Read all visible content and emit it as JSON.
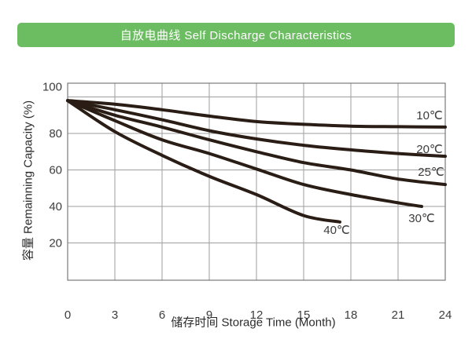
{
  "header": {
    "title": "自放电曲线 Self Discharge Characteristics"
  },
  "colors": {
    "header_bg": "#6cbd62",
    "header_text": "#ffffff",
    "curve": "#2a1d15",
    "grid": "#9e9e9e",
    "border": "#7a7a7a",
    "tick_text": "#3d3d3d",
    "axis_title_text": "#2b2b2b",
    "background": "#ffffff"
  },
  "chart_data": {
    "type": "line",
    "title": "自放电曲线 Self Discharge Characteristics",
    "xlabel": "储存时间 Storage Time (Month)",
    "ylabel": "容量 Remainning Capacity (%)",
    "x_ticks": [
      0,
      3,
      6,
      9,
      12,
      15,
      18,
      21,
      24
    ],
    "y_ticks": [
      100,
      80,
      60,
      40,
      20
    ],
    "xlim": [
      0,
      24
    ],
    "ylim": [
      0,
      108
    ],
    "grid": true,
    "legend_position": "labels-at-line-ends",
    "series": [
      {
        "name": "10℃",
        "points": [
          [
            0,
            98
          ],
          [
            3,
            96
          ],
          [
            6,
            93
          ],
          [
            9,
            89.5
          ],
          [
            12,
            86.5
          ],
          [
            15,
            85
          ],
          [
            18,
            84
          ],
          [
            21,
            83.7
          ],
          [
            24,
            83.5
          ]
        ],
        "label_at": [
          23,
          90
        ]
      },
      {
        "name": "20℃",
        "points": [
          [
            0,
            98
          ],
          [
            3,
            93
          ],
          [
            6,
            87.5
          ],
          [
            9,
            81.5
          ],
          [
            12,
            77
          ],
          [
            15,
            73.5
          ],
          [
            18,
            71
          ],
          [
            21,
            69
          ],
          [
            24,
            67.5
          ]
        ],
        "label_at": [
          23,
          71.5
        ]
      },
      {
        "name": "25℃",
        "points": [
          [
            0,
            98
          ],
          [
            3,
            90
          ],
          [
            6,
            83.5
          ],
          [
            9,
            76.5
          ],
          [
            12,
            70
          ],
          [
            15,
            64
          ],
          [
            18,
            60
          ],
          [
            21,
            55
          ],
          [
            24,
            52
          ]
        ],
        "label_at": [
          23.1,
          59
        ]
      },
      {
        "name": "30℃",
        "points": [
          [
            0,
            98
          ],
          [
            3,
            87
          ],
          [
            6,
            76.5
          ],
          [
            9,
            69
          ],
          [
            12,
            60.5
          ],
          [
            15,
            52
          ],
          [
            18,
            46.5
          ],
          [
            21,
            42
          ],
          [
            22.5,
            40
          ]
        ],
        "label_at": [
          22.5,
          33.5
        ]
      },
      {
        "name": "40℃",
        "points": [
          [
            0,
            98
          ],
          [
            3,
            81
          ],
          [
            6,
            68
          ],
          [
            9,
            56.5
          ],
          [
            12,
            46.5
          ],
          [
            15,
            35
          ],
          [
            17.3,
            31.5
          ]
        ],
        "label_at": [
          17.1,
          27
        ]
      }
    ]
  }
}
